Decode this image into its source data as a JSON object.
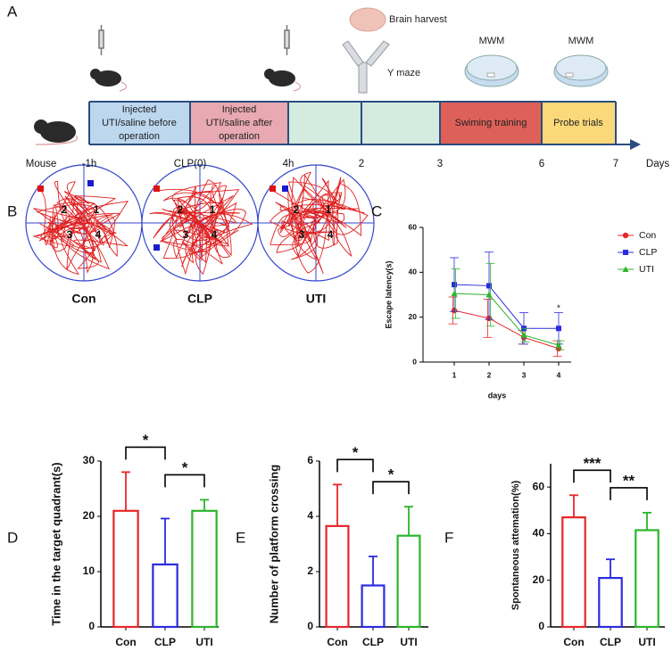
{
  "panel_labels": [
    "A",
    "B",
    "C",
    "D",
    "E",
    "F"
  ],
  "timeline": {
    "subject": "Mouse",
    "ticks": [
      "-1h",
      "CLP(0)",
      "4h",
      "2",
      "3",
      "6",
      "7"
    ],
    "unit": "Days",
    "boxes": [
      {
        "lines": [
          "Injected",
          "UTI/saline before",
          "operation"
        ]
      },
      {
        "lines": [
          "Injected",
          "UTI/saline after",
          "operation"
        ]
      },
      {
        "lines": []
      },
      {
        "lines": []
      },
      {
        "lines": [
          "Swiming training"
        ]
      },
      {
        "lines": [
          "Probe trials"
        ]
      }
    ],
    "icons": [
      "Brain harvest",
      "Y maze",
      "MWM",
      "MWM"
    ]
  },
  "maze_tracks": {
    "groups": [
      "Con",
      "CLP",
      "UTI"
    ],
    "quadrants": [
      "1",
      "2",
      "3",
      "4"
    ]
  },
  "chart_data": [
    {
      "type": "line",
      "x_label": "days",
      "y_label": "Escape latency(s)",
      "categories": [
        "1",
        "2",
        "3",
        "4"
      ],
      "ylim": [
        0,
        60
      ],
      "yticks": [
        0,
        20,
        40,
        60
      ],
      "annotation": "*",
      "legend": "top-right",
      "series": [
        {
          "name": "Con",
          "color": "#e8262a",
          "marker": "circle",
          "values": [
            23,
            19.5,
            11,
            6
          ],
          "errors": [
            6,
            8.5,
            3,
            3.5
          ]
        },
        {
          "name": "CLP",
          "color": "#2b2be0",
          "marker": "square",
          "values": [
            34.5,
            34,
            15,
            15
          ],
          "errors": [
            12,
            15,
            7,
            7
          ]
        },
        {
          "name": "UTI",
          "color": "#2bb52b",
          "marker": "triangle",
          "values": [
            30.5,
            30,
            12,
            7.5
          ],
          "errors": [
            11,
            14,
            3,
            2
          ]
        }
      ]
    },
    {
      "type": "bar",
      "y_label": "Time in the target quadrant(s)",
      "categories": [
        "Con",
        "CLP",
        "UTI"
      ],
      "values": [
        21,
        11.3,
        21
      ],
      "errors": [
        7,
        8.3,
        2
      ],
      "colors": [
        "#e8262a",
        "#2b2be0",
        "#2bb52b"
      ],
      "ylim": [
        0,
        30
      ],
      "yticks": [
        0,
        10,
        20,
        30
      ],
      "significance": [
        {
          "pair": [
            "Con",
            "CLP"
          ],
          "label": "*"
        },
        {
          "pair": [
            "CLP",
            "UTI"
          ],
          "label": "*"
        }
      ]
    },
    {
      "type": "bar",
      "y_label": "Number of platform crossing",
      "categories": [
        "Con",
        "CLP",
        "UTI"
      ],
      "values": [
        3.65,
        1.5,
        3.3
      ],
      "errors": [
        1.5,
        1.05,
        1.05
      ],
      "colors": [
        "#e8262a",
        "#2b2be0",
        "#2bb52b"
      ],
      "ylim": [
        0,
        6
      ],
      "yticks": [
        0,
        2,
        4,
        6
      ],
      "significance": [
        {
          "pair": [
            "Con",
            "CLP"
          ],
          "label": "*"
        },
        {
          "pair": [
            "CLP",
            "UTI"
          ],
          "label": "*"
        }
      ]
    },
    {
      "type": "bar",
      "y_label": "Spontaneous attemation(%)",
      "categories": [
        "Con",
        "CLP",
        "UTI"
      ],
      "values": [
        47,
        21,
        41.5
      ],
      "errors": [
        9.5,
        8,
        7.5
      ],
      "colors": [
        "#e8262a",
        "#2b2be0",
        "#2bb52b"
      ],
      "ylim": [
        0,
        70
      ],
      "yticks": [
        0,
        20,
        40,
        60
      ],
      "significance": [
        {
          "pair": [
            "Con",
            "CLP"
          ],
          "label": "***"
        },
        {
          "pair": [
            "CLP",
            "UTI"
          ],
          "label": "**"
        }
      ]
    }
  ]
}
